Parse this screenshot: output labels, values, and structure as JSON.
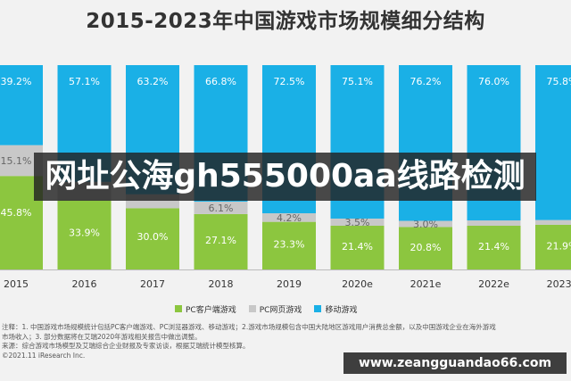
{
  "chart_data": {
    "type": "bar",
    "stacked": true,
    "percent_stacked": true,
    "title": "2015-2023年中国游戏市场规模细分结构",
    "categories": [
      "2015",
      "2016",
      "2017",
      "2018",
      "2019",
      "2020e",
      "2021e",
      "2022e",
      "2023e"
    ],
    "series": [
      {
        "name": "PC客户端游戏",
        "color": "#8cc63f",
        "values": [
          45.8,
          33.9,
          30.0,
          27.1,
          23.3,
          21.4,
          20.8,
          21.4,
          21.9
        ]
      },
      {
        "name": "PC网页游戏",
        "color": "#c8c8c8",
        "values": [
          15.1,
          9.0,
          6.8,
          6.1,
          4.2,
          3.5,
          3.0,
          2.6,
          2.3
        ]
      },
      {
        "name": "移动游戏",
        "color": "#1ab0e6",
        "values": [
          39.2,
          57.1,
          63.2,
          66.8,
          72.5,
          75.1,
          76.2,
          76.0,
          75.8
        ]
      }
    ],
    "data_labels": [
      [
        "45.8%",
        "33.9%",
        "30.0%",
        "27.1%",
        "23.3%",
        "21.4%",
        "20.8%",
        "21.4%",
        "21.9%"
      ],
      [
        "15.1%",
        "",
        "",
        "6.1%",
        "4.2%",
        "3.5%",
        "3.0%",
        "",
        ""
      ],
      [
        "39.2%",
        "57.1%",
        "63.2%",
        "66.8%",
        "72.5%",
        "75.1%",
        "76.2%",
        "76.0%",
        "75.8%"
      ]
    ],
    "ylim": [
      0,
      100
    ],
    "legend_position": "bottom",
    "grid": false
  },
  "notes": [
    "注释：1. 中国游戏市场规模统计包括PC客户端游戏、PC浏览器游戏、移动游戏；2.游戏市场规模包含中国大陆地区游戏用户消费总金额，以及中国游戏企业在海外游戏",
    "市场收入；3. 部分数据将在艾瑞2020年游戏相关报告中做出调整。",
    "来源：综合游戏市场模型及艾瑞综合企业财报及专家访谈，根据艾瑞统计模型核算。",
    "©2021.11 iResearch Inc."
  ],
  "watermark_text": "网址公海gh555000aa线路检测",
  "url_banner_text": "www.zeangguandao66.com"
}
